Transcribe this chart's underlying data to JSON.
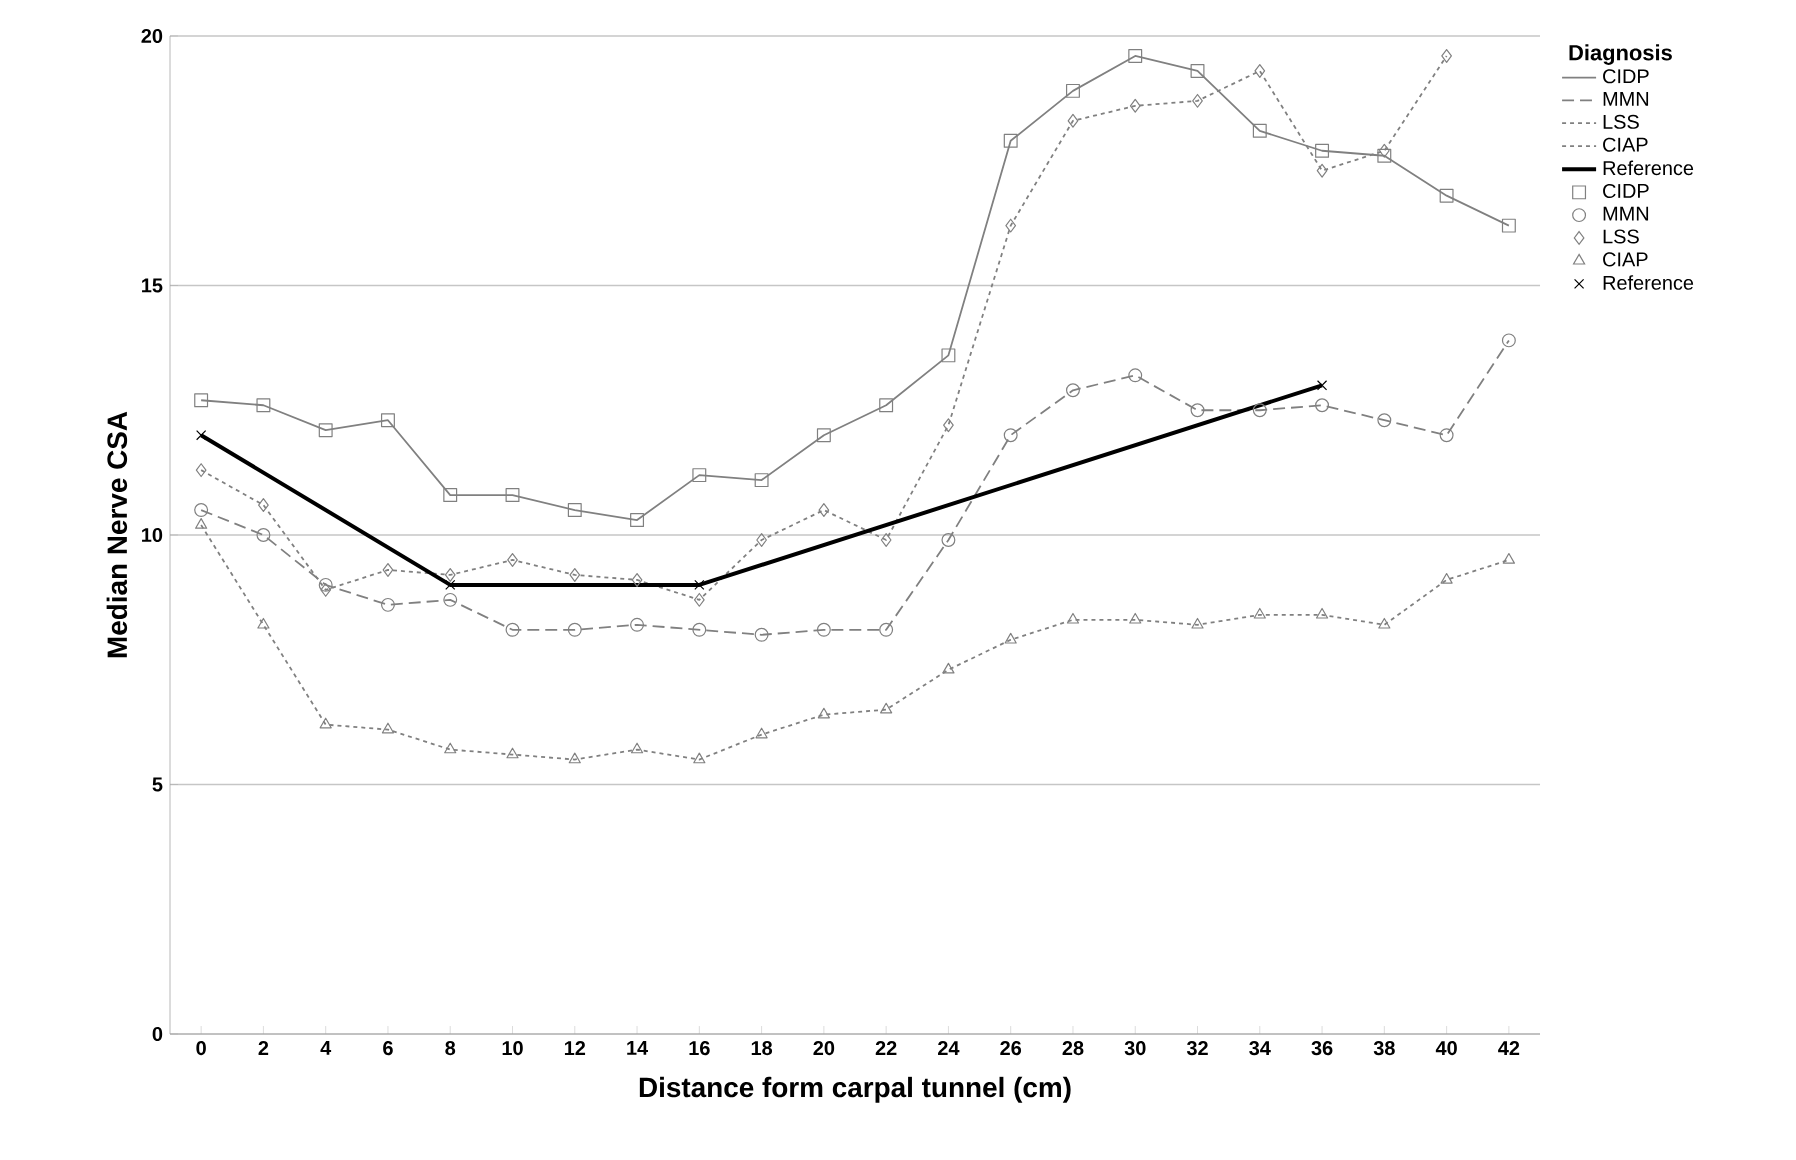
{
  "chart_data": {
    "type": "line",
    "xlabel": "Distance form carpal tunnel (cm)",
    "ylabel": "Median Nerve CSA",
    "legend_title": "Diagnosis",
    "legend": "right",
    "grid": "y",
    "x": [
      0,
      2,
      4,
      6,
      8,
      10,
      12,
      14,
      16,
      18,
      20,
      22,
      24,
      26,
      28,
      30,
      32,
      34,
      36,
      38,
      40,
      42
    ],
    "xlim": [
      -1,
      43
    ],
    "xticks": [
      0,
      2,
      4,
      6,
      8,
      10,
      12,
      14,
      16,
      18,
      20,
      22,
      24,
      26,
      28,
      30,
      32,
      34,
      36,
      38,
      40,
      42
    ],
    "ylim": [
      0,
      20
    ],
    "yticks": [
      0,
      5,
      10,
      15,
      20
    ],
    "series": [
      {
        "name": "CIDP",
        "color": "#808080",
        "line_style": "solid",
        "marker": "square",
        "values": [
          12.7,
          12.6,
          12.1,
          12.3,
          10.8,
          10.8,
          10.5,
          10.3,
          11.2,
          11.1,
          12.0,
          12.6,
          13.6,
          17.9,
          18.9,
          19.6,
          19.3,
          18.1,
          17.7,
          17.6,
          16.8,
          16.2
        ]
      },
      {
        "name": "MMN",
        "color": "#808080",
        "line_style": "dashed",
        "marker": "circle",
        "values": [
          10.5,
          10.0,
          9.0,
          8.6,
          8.7,
          8.1,
          8.1,
          8.2,
          8.1,
          8.0,
          8.1,
          8.1,
          9.9,
          12.0,
          12.9,
          13.2,
          12.5,
          12.5,
          12.6,
          12.3,
          12.0,
          13.9
        ]
      },
      {
        "name": "LSS",
        "color": "#808080",
        "line_style": "dotted",
        "marker": "diamond",
        "values": [
          11.3,
          10.6,
          8.9,
          9.3,
          9.2,
          9.5,
          9.2,
          9.1,
          8.7,
          9.9,
          10.5,
          9.9,
          12.2,
          16.2,
          18.3,
          18.6,
          18.7,
          19.3,
          17.3,
          17.7,
          19.6,
          null
        ]
      },
      {
        "name": "CIAP",
        "color": "#808080",
        "line_style": "dotted",
        "marker": "triangle",
        "values": [
          10.2,
          8.2,
          6.2,
          6.1,
          5.7,
          5.6,
          5.5,
          5.7,
          5.5,
          6.0,
          6.4,
          6.5,
          7.3,
          7.9,
          8.3,
          8.3,
          8.2,
          8.4,
          8.4,
          8.2,
          9.1,
          9.5
        ]
      },
      {
        "name": "Reference",
        "color": "#000000",
        "line_style": "solid",
        "marker": "cross",
        "x": [
          0,
          8,
          16,
          36
        ],
        "values": [
          12,
          9,
          9,
          13
        ]
      }
    ]
  }
}
